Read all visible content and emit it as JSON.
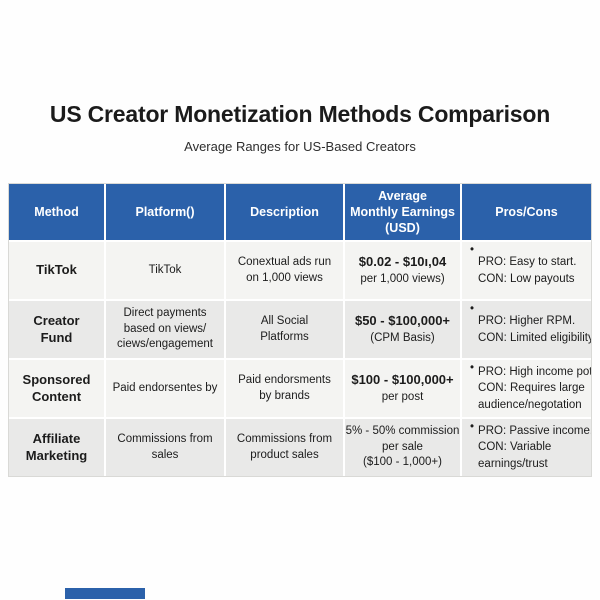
{
  "page": {
    "title": "US Creator Monetization Methods Comparison",
    "subtitle": "Average Ranges for US-Based Creators"
  },
  "colors": {
    "header_bg": "#2b61aa",
    "header_text": "#ffffff",
    "row_bg": "#f4f4f2",
    "row_alt_bg": "#e9e9e8",
    "body_text": "#1c1c1c",
    "accent_bar": "#2b61aa"
  },
  "table": {
    "headers": [
      "Method",
      "Platform()",
      "Description",
      "Average\nMonthly Earnings\n(USD)",
      "Pros/Cons"
    ],
    "rows": [
      {
        "method": "TikTok",
        "platform": "TikTok",
        "description": "Conextual ads run\non 1,000 views",
        "earnings_amount": "$0.02 - $10ı,04",
        "earnings_note": "per 1,000 views)",
        "bullet": "•",
        "pros_cons": "PRO: Easy to start.\nCON: Low payouts"
      },
      {
        "method": "Creator\nFund",
        "platform": "Direct payments\nbased on views/\nciews/engagement",
        "description": "All Social\nPlatforms",
        "earnings_amount": "$50 - $100,000+",
        "earnings_note": "(CPM Basis)",
        "bullet": "•",
        "pros_cons": "PRO: Higher RPM.\nCON: Limited eligibility"
      },
      {
        "method": "Sponsored\nContent",
        "platform": "Paid endorsentes by",
        "description": "Paid endorsments\nby brands",
        "earnings_amount": "$100 - $100,000+",
        "earnings_note": "per post",
        "bullet": "•",
        "pros_cons": "PRO: High income potential\nCON: Requires large\naudience/negotation"
      },
      {
        "method": "Affiliate\nMarketing",
        "platform": "Commissions from\nsales",
        "description": "Commissions from\nproduct sales",
        "earnings_amount": "5% - 50% commission",
        "earnings_note": "per sale\n($100 - 1,000+)",
        "bullet": "•",
        "pros_cons": "PRO: Passive income.\nCON: Variable\nearnings/trust"
      }
    ]
  },
  "chart_data": {
    "type": "table",
    "title": "US Creator Monetization Methods Comparison",
    "subtitle": "Average Ranges for US-Based Creators",
    "columns": [
      "Method",
      "Platform()",
      "Description",
      "Average Monthly Earnings (USD)",
      "Pros/Cons"
    ],
    "rows": [
      [
        "TikTok",
        "TikTok",
        "Conextual ads run on 1,000 views",
        "$0.02 - $10ı,04 per 1,000 views)",
        "PRO: Easy to start. CON: Low payouts"
      ],
      [
        "Creator Fund",
        "Direct payments based on views/ciews/engagement",
        "All Social Platforms",
        "$50 - $100,000+ (CPM Basis)",
        "PRO: Higher RPM. CON: Limited eligibility"
      ],
      [
        "Sponsored Content",
        "Paid endorsentes by",
        "Paid endorsments by brands",
        "$100 - $100,000+ per post",
        "PRO: High income potential CON: Requires large audience/negotation"
      ],
      [
        "Affiliate Marketing",
        "Commissions from sales",
        "Commissions from product sales",
        "5% - 50% commission per sale ($100 - 1,000+)",
        "PRO: Passive income. CON: Variable earnings/trust"
      ]
    ],
    "layout": {
      "header_position": "top",
      "zebra_striping": true,
      "grid": true
    }
  }
}
